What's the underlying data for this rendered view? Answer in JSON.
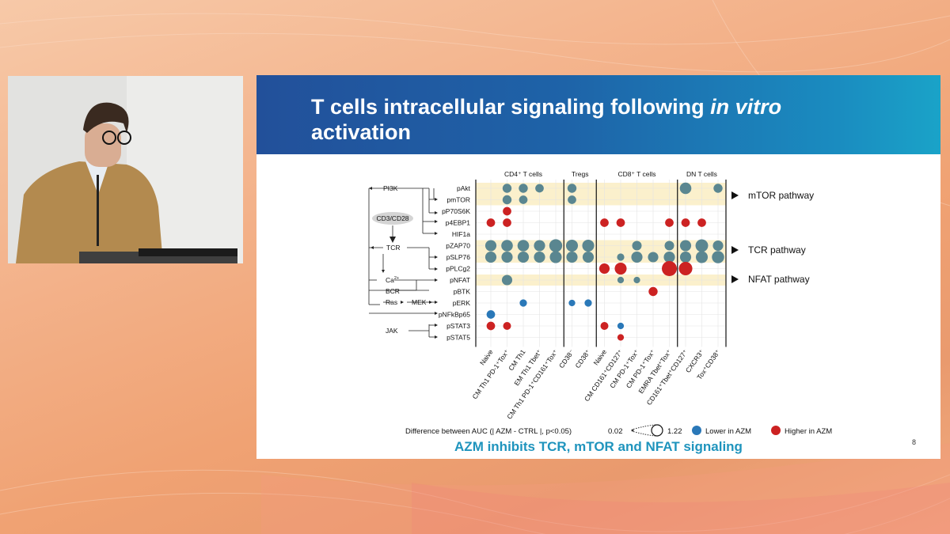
{
  "slide": {
    "title_line1": "T cells intracellular signaling following ",
    "title_italic": "in vitro",
    "title_line2": "activation",
    "conclusion": "AZM inhibits TCR, mTOR and NFAT signaling",
    "page_number": "8"
  },
  "groups": [
    "CD4⁺ T cells",
    "Tregs",
    "CD8⁺ T cells",
    "DN T cells"
  ],
  "columns": [
    "Naive",
    "CM Th1 PD-1⁺Tox⁺",
    "CM Th1",
    "EM Th1 Tbet⁺",
    "CM Th1 PD-1⁺CD161⁺Tox⁺",
    "CD38⁻",
    "CD38⁺",
    "Naive",
    "CM CD161⁺CD127⁺",
    "CM PD-1⁺Tox⁺",
    "CM PD-1⁺Tox⁺",
    "EMRA Tbet⁺Tox⁺",
    "CD161⁺Tbet⁺CD127⁺",
    "CXCR3⁺",
    "Tox⁺CD38⁺"
  ],
  "rows": [
    "pAkt",
    "pmTOR",
    "pP70S6K",
    "p4EBP1",
    "HIF1a",
    "pZAP70",
    "pSLP76",
    "pPLCg2",
    "pNFAT",
    "pBTK",
    "pERK",
    "pNFkBp65",
    "pSTAT3",
    "pSTAT5"
  ],
  "diagram_nodes": {
    "pi3k": "PI3K",
    "cd3cd28": "CD3/CD28",
    "tcr": "TCR",
    "ca": "Ca",
    "ca_sup": "2+",
    "bcr": "BCR",
    "ras": "Ras",
    "mek": "MEK",
    "jak": "JAK"
  },
  "pathways": [
    {
      "label": "mTOR pathway"
    },
    {
      "label": "TCR pathway"
    },
    {
      "label": "NFAT pathway"
    }
  ],
  "legend": {
    "size_title": "Difference between AUC (| AZM - CTRL |, p<0.05)",
    "size_min": "0.02",
    "size_max": "1.22",
    "lower": "Lower in AZM",
    "higher": "Higher in AZM"
  },
  "colors": {
    "lower": "#5a8690",
    "lower_blue": "#2a78b8",
    "higher": "#cc2222",
    "highlight": "#fbf0cc"
  },
  "chart_data": {
    "type": "bubble-matrix",
    "size_range": [
      0.02,
      1.22
    ],
    "points": [
      {
        "row": "pAkt",
        "col": 1,
        "dir": "lower",
        "value": 0.35
      },
      {
        "row": "pAkt",
        "col": 2,
        "dir": "lower",
        "value": 0.35
      },
      {
        "row": "pAkt",
        "col": 3,
        "dir": "lower",
        "value": 0.3
      },
      {
        "row": "pAkt",
        "col": 5,
        "dir": "lower",
        "value": 0.35
      },
      {
        "row": "pAkt",
        "col": 12,
        "dir": "lower",
        "value": 0.65
      },
      {
        "row": "pAkt",
        "col": 14,
        "dir": "lower",
        "value": 0.35
      },
      {
        "row": "pmTOR",
        "col": 1,
        "dir": "lower",
        "value": 0.35
      },
      {
        "row": "pmTOR",
        "col": 2,
        "dir": "lower",
        "value": 0.3
      },
      {
        "row": "pmTOR",
        "col": 5,
        "dir": "lower",
        "value": 0.3
      },
      {
        "row": "pP70S6K",
        "col": 1,
        "dir": "higher",
        "value": 0.3
      },
      {
        "row": "p4EBP1",
        "col": 0,
        "dir": "higher",
        "value": 0.3
      },
      {
        "row": "p4EBP1",
        "col": 1,
        "dir": "higher",
        "value": 0.3
      },
      {
        "row": "p4EBP1",
        "col": 7,
        "dir": "higher",
        "value": 0.3
      },
      {
        "row": "p4EBP1",
        "col": 8,
        "dir": "higher",
        "value": 0.3
      },
      {
        "row": "p4EBP1",
        "col": 11,
        "dir": "higher",
        "value": 0.3
      },
      {
        "row": "p4EBP1",
        "col": 12,
        "dir": "higher",
        "value": 0.3
      },
      {
        "row": "p4EBP1",
        "col": 13,
        "dir": "higher",
        "value": 0.3
      },
      {
        "row": "pZAP70",
        "col": 0,
        "dir": "lower",
        "value": 0.6
      },
      {
        "row": "pZAP70",
        "col": 1,
        "dir": "lower",
        "value": 0.65
      },
      {
        "row": "pZAP70",
        "col": 2,
        "dir": "lower",
        "value": 0.65
      },
      {
        "row": "pZAP70",
        "col": 3,
        "dir": "lower",
        "value": 0.6
      },
      {
        "row": "pZAP70",
        "col": 4,
        "dir": "lower",
        "value": 0.85
      },
      {
        "row": "pZAP70",
        "col": 5,
        "dir": "lower",
        "value": 0.7
      },
      {
        "row": "pZAP70",
        "col": 6,
        "dir": "lower",
        "value": 0.7
      },
      {
        "row": "pZAP70",
        "col": 9,
        "dir": "lower",
        "value": 0.4
      },
      {
        "row": "pZAP70",
        "col": 11,
        "dir": "lower",
        "value": 0.4
      },
      {
        "row": "pZAP70",
        "col": 12,
        "dir": "lower",
        "value": 0.6
      },
      {
        "row": "pZAP70",
        "col": 13,
        "dir": "lower",
        "value": 0.8
      },
      {
        "row": "pZAP70",
        "col": 14,
        "dir": "lower",
        "value": 0.5
      },
      {
        "row": "pSLP76",
        "col": 0,
        "dir": "lower",
        "value": 0.6
      },
      {
        "row": "pSLP76",
        "col": 1,
        "dir": "lower",
        "value": 0.6
      },
      {
        "row": "pSLP76",
        "col": 2,
        "dir": "lower",
        "value": 0.6
      },
      {
        "row": "pSLP76",
        "col": 3,
        "dir": "lower",
        "value": 0.6
      },
      {
        "row": "pSLP76",
        "col": 4,
        "dir": "lower",
        "value": 0.7
      },
      {
        "row": "pSLP76",
        "col": 5,
        "dir": "lower",
        "value": 0.6
      },
      {
        "row": "pSLP76",
        "col": 6,
        "dir": "lower",
        "value": 0.6
      },
      {
        "row": "pSLP76",
        "col": 8,
        "dir": "lower",
        "value": 0.2
      },
      {
        "row": "pSLP76",
        "col": 9,
        "dir": "lower",
        "value": 0.6
      },
      {
        "row": "pSLP76",
        "col": 10,
        "dir": "lower",
        "value": 0.5
      },
      {
        "row": "pSLP76",
        "col": 11,
        "dir": "lower",
        "value": 0.6
      },
      {
        "row": "pSLP76",
        "col": 12,
        "dir": "lower",
        "value": 0.6
      },
      {
        "row": "pSLP76",
        "col": 13,
        "dir": "lower",
        "value": 0.7
      },
      {
        "row": "pSLP76",
        "col": 14,
        "dir": "lower",
        "value": 0.75
      },
      {
        "row": "pPLCg2",
        "col": 7,
        "dir": "higher",
        "value": 0.5
      },
      {
        "row": "pPLCg2",
        "col": 8,
        "dir": "higher",
        "value": 0.7
      },
      {
        "row": "pPLCg2",
        "col": 11,
        "dir": "higher",
        "value": 1.22
      },
      {
        "row": "pPLCg2",
        "col": 12,
        "dir": "higher",
        "value": 0.95
      },
      {
        "row": "pNFAT",
        "col": 1,
        "dir": "lower",
        "value": 0.5
      },
      {
        "row": "pNFAT",
        "col": 8,
        "dir": "lower",
        "value": 0.15
      },
      {
        "row": "pNFAT",
        "col": 9,
        "dir": "lower",
        "value": 0.15
      },
      {
        "row": "pBTK",
        "col": 10,
        "dir": "higher",
        "value": 0.35
      },
      {
        "row": "pERK",
        "col": 2,
        "dir": "lower_blue",
        "value": 0.2
      },
      {
        "row": "pERK",
        "col": 5,
        "dir": "lower_blue",
        "value": 0.15
      },
      {
        "row": "pERK",
        "col": 6,
        "dir": "lower_blue",
        "value": 0.2
      },
      {
        "row": "pNFkBp65",
        "col": 0,
        "dir": "lower_blue",
        "value": 0.3
      },
      {
        "row": "pSTAT3",
        "col": 0,
        "dir": "higher",
        "value": 0.3
      },
      {
        "row": "pSTAT3",
        "col": 1,
        "dir": "higher",
        "value": 0.25
      },
      {
        "row": "pSTAT3",
        "col": 7,
        "dir": "higher",
        "value": 0.25
      },
      {
        "row": "pSTAT3",
        "col": 8,
        "dir": "lower_blue",
        "value": 0.15
      },
      {
        "row": "pSTAT5",
        "col": 8,
        "dir": "higher",
        "value": 0.15
      }
    ]
  }
}
